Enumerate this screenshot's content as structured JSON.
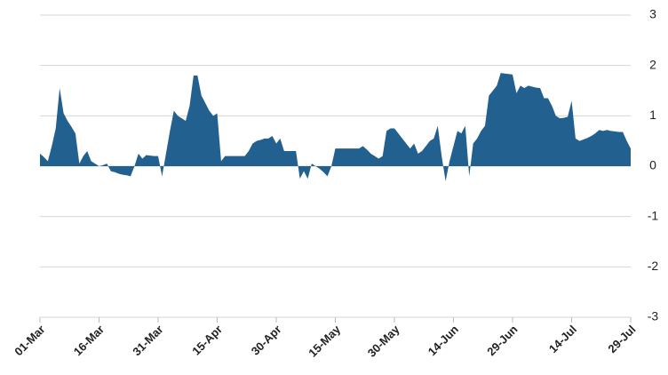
{
  "chart_data": {
    "type": "area",
    "color": "#22618f",
    "grid": true,
    "categories": [
      "01-Mar",
      null,
      null,
      null,
      null,
      null,
      null,
      null,
      null,
      null,
      null,
      null,
      null,
      null,
      null,
      "16-Mar",
      null,
      null,
      null,
      null,
      null,
      null,
      null,
      null,
      null,
      null,
      null,
      null,
      null,
      null,
      "31-Mar",
      null,
      null,
      null,
      null,
      null,
      null,
      null,
      null,
      null,
      null,
      null,
      null,
      null,
      null,
      "15-Apr",
      null,
      null,
      null,
      null,
      null,
      null,
      null,
      null,
      null,
      null,
      null,
      null,
      null,
      null,
      "30-Apr",
      null,
      null,
      null,
      null,
      null,
      null,
      null,
      null,
      null,
      null,
      null,
      null,
      null,
      null,
      "15-May",
      null,
      null,
      null,
      null,
      null,
      null,
      null,
      null,
      null,
      null,
      null,
      null,
      null,
      null,
      "30-May",
      null,
      null,
      null,
      null,
      null,
      null,
      null,
      null,
      null,
      null,
      null,
      null,
      null,
      null,
      "14-Jun",
      null,
      null,
      null,
      null,
      null,
      null,
      null,
      null,
      null,
      null,
      null,
      null,
      null,
      null,
      "29-Jun",
      null,
      null,
      null,
      null,
      null,
      null,
      null,
      null,
      null,
      null,
      null,
      null,
      null,
      null,
      "14-Jul",
      null,
      null,
      null,
      null,
      null,
      null,
      null,
      null,
      null,
      null,
      null,
      null,
      null,
      null,
      "29-Jul"
    ],
    "values": [
      0.25,
      0.18,
      0.1,
      0.4,
      0.75,
      1.55,
      1.05,
      0.9,
      0.78,
      0.65,
      0.05,
      0.2,
      0.3,
      0.1,
      0.05,
      0,
      0.02,
      0.05,
      -0.1,
      -0.12,
      -0.15,
      -0.17,
      -0.18,
      -0.2,
      0,
      0.25,
      0.15,
      0.22,
      0.21,
      0.2,
      0.2,
      -0.2,
      0.25,
      0.7,
      1.1,
      1.0,
      0.95,
      0.9,
      1.2,
      1.8,
      1.8,
      1.4,
      1.25,
      1.1,
      1.0,
      1.05,
      0.1,
      0.2,
      0.2,
      0.2,
      0.2,
      0.2,
      0.2,
      0.3,
      0.45,
      0.5,
      0.52,
      0.55,
      0.55,
      0.6,
      0.45,
      0.55,
      0.3,
      0.3,
      0.3,
      0.3,
      -0.25,
      -0.1,
      -0.25,
      0.05,
      0,
      -0.05,
      -0.12,
      -0.2,
      0,
      0.35,
      0.35,
      0.35,
      0.35,
      0.35,
      0.35,
      0.35,
      0.4,
      0.33,
      0.25,
      0.2,
      0.15,
      0.2,
      0.7,
      0.75,
      0.75,
      0.65,
      0.55,
      0.45,
      0.35,
      0.45,
      0.25,
      0.3,
      0.4,
      0.5,
      0.55,
      0.8,
      0.2,
      -0.3,
      0.1,
      0.4,
      0.7,
      0.65,
      0.8,
      -0.2,
      0.45,
      0.55,
      0.7,
      0.8,
      1.4,
      1.5,
      1.6,
      1.85,
      1.84,
      1.83,
      1.82,
      1.45,
      1.6,
      1.55,
      1.6,
      1.58,
      1.56,
      1.55,
      1.35,
      1.35,
      1.2,
      1.0,
      0.95,
      0.96,
      0.98,
      1.3,
      0.55,
      0.5,
      0.53,
      0.56,
      0.6,
      0.65,
      0.72,
      0.7,
      0.72,
      0.7,
      0.69,
      0.68,
      0.68,
      0.5,
      0.35
    ],
    "ylim": [
      -3,
      3
    ],
    "yticks": [
      -3,
      -2,
      -1,
      0,
      1,
      2,
      3
    ]
  }
}
